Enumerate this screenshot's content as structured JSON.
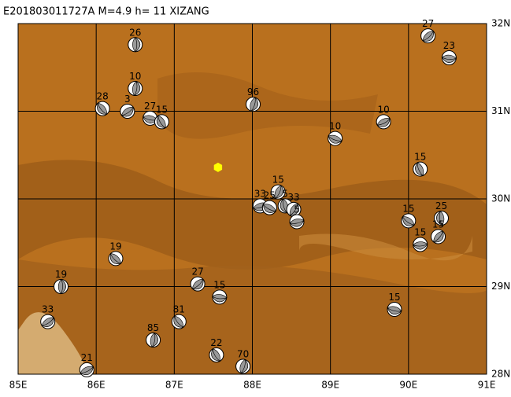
{
  "title": "E201803011727A M=4.9 h= 11 XIZANG",
  "map": {
    "xlim": [
      85,
      91
    ],
    "ylim": [
      28,
      32
    ],
    "xticks": [
      {
        "value": 85,
        "label": "85E"
      },
      {
        "value": 86,
        "label": "86E"
      },
      {
        "value": 87,
        "label": "87E"
      },
      {
        "value": 88,
        "label": "88E"
      },
      {
        "value": 89,
        "label": "89E"
      },
      {
        "value": 90,
        "label": "90E"
      },
      {
        "value": 91,
        "label": "91E"
      }
    ],
    "yticks": [
      {
        "value": 28,
        "label": "28N"
      },
      {
        "value": 29,
        "label": "29N"
      },
      {
        "value": 30,
        "label": "30N"
      },
      {
        "value": 31,
        "label": "31N"
      },
      {
        "value": 32,
        "label": "32N"
      }
    ],
    "epicenter": {
      "lon": 87.56,
      "lat": 30.36,
      "color": "#ffff00"
    },
    "events": [
      {
        "label": "26",
        "lon": 86.5,
        "lat": 31.76
      },
      {
        "label": "27",
        "lon": 90.25,
        "lat": 31.86
      },
      {
        "label": "23",
        "lon": 90.52,
        "lat": 31.61
      },
      {
        "label": "28",
        "lon": 86.08,
        "lat": 31.03
      },
      {
        "label": "10",
        "lon": 86.5,
        "lat": 31.26
      },
      {
        "label": "3",
        "lon": 86.4,
        "lat": 31.0
      },
      {
        "label": "27",
        "lon": 86.69,
        "lat": 30.92
      },
      {
        "label": "15",
        "lon": 86.84,
        "lat": 30.88
      },
      {
        "label": "96",
        "lon": 88.01,
        "lat": 31.08
      },
      {
        "label": "10",
        "lon": 89.68,
        "lat": 30.88
      },
      {
        "label": "10",
        "lon": 89.06,
        "lat": 30.69
      },
      {
        "label": "15",
        "lon": 90.15,
        "lat": 30.34
      },
      {
        "label": "15",
        "lon": 88.33,
        "lat": 30.08
      },
      {
        "label": "33",
        "lon": 88.1,
        "lat": 29.92
      },
      {
        "label": "25",
        "lon": 88.22,
        "lat": 29.9
      },
      {
        "label": "5",
        "lon": 88.42,
        "lat": 29.92
      },
      {
        "label": "33",
        "lon": 88.53,
        "lat": 29.88
      },
      {
        "label": "5",
        "lon": 88.57,
        "lat": 29.74
      },
      {
        "label": "15",
        "lon": 90.0,
        "lat": 29.75
      },
      {
        "label": "25",
        "lon": 90.42,
        "lat": 29.78
      },
      {
        "label": "15",
        "lon": 90.38,
        "lat": 29.57
      },
      {
        "label": "15",
        "lon": 90.15,
        "lat": 29.48
      },
      {
        "label": "19",
        "lon": 86.25,
        "lat": 29.32
      },
      {
        "label": "19",
        "lon": 85.55,
        "lat": 29.0
      },
      {
        "label": "27",
        "lon": 87.3,
        "lat": 29.03
      },
      {
        "label": "15",
        "lon": 87.58,
        "lat": 28.88
      },
      {
        "label": "81",
        "lon": 87.06,
        "lat": 28.6
      },
      {
        "label": "85",
        "lon": 86.73,
        "lat": 28.39
      },
      {
        "label": "33",
        "lon": 85.38,
        "lat": 28.6
      },
      {
        "label": "15",
        "lon": 89.82,
        "lat": 28.74
      },
      {
        "label": "22",
        "lon": 87.54,
        "lat": 28.22
      },
      {
        "label": "70",
        "lon": 87.88,
        "lat": 28.09
      },
      {
        "label": "21",
        "lon": 85.88,
        "lat": 28.05
      }
    ]
  }
}
